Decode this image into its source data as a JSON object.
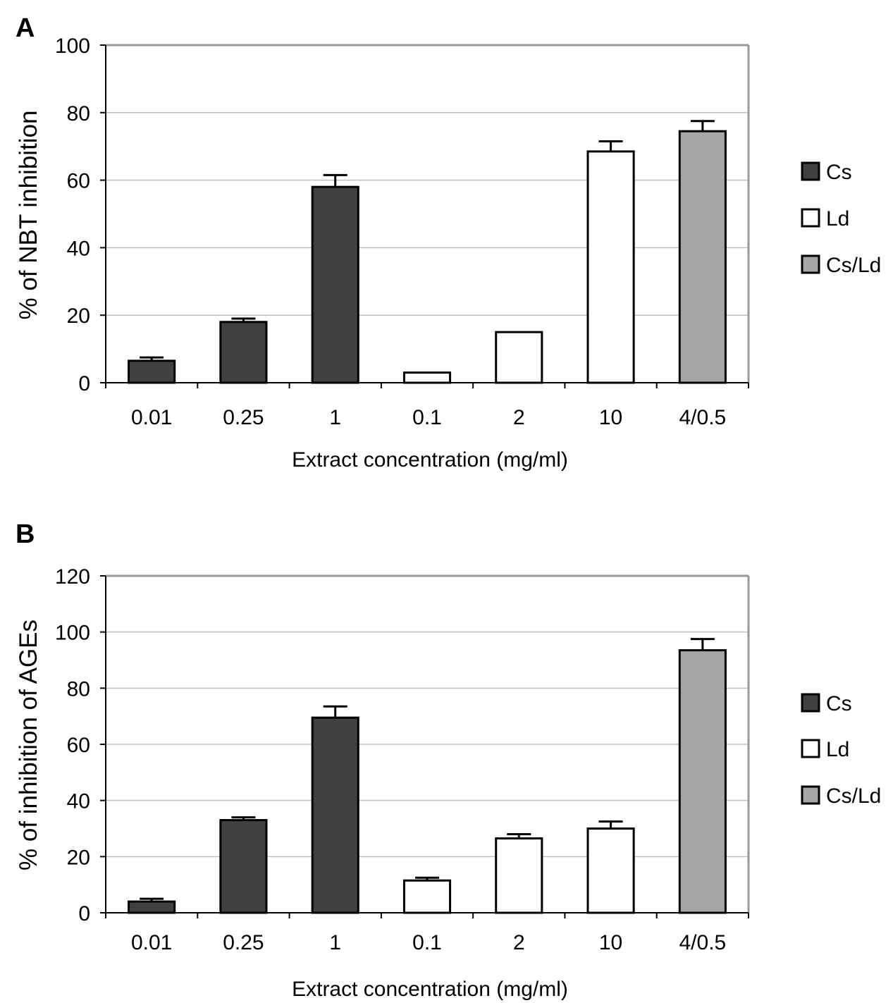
{
  "colors": {
    "cs": "#404040",
    "ld": "#ffffff",
    "cs_ld": "#a6a6a6",
    "outline": "#000000",
    "frame": "#999999",
    "grid": "#c0c0c0"
  },
  "chart_data": [
    {
      "panel_label": "A",
      "type": "bar",
      "title": "",
      "xlabel": "Extract concentration (mg/ml)",
      "ylabel": "% of NBT inhibition",
      "ylim": [
        0,
        100
      ],
      "yticks": [
        0,
        20,
        40,
        60,
        80,
        100
      ],
      "grid": true,
      "legend_position": "right",
      "categories": [
        "0.01",
        "0.25",
        "1",
        "0.1",
        "2",
        "10",
        "4/0.5"
      ],
      "series": [
        {
          "name": "Cs",
          "color_key": "cs",
          "values": [
            6.5,
            18,
            58,
            null,
            null,
            null,
            null
          ],
          "errors": [
            1,
            1,
            3.5,
            null,
            null,
            null,
            null
          ]
        },
        {
          "name": "Ld",
          "color_key": "ld",
          "values": [
            null,
            null,
            null,
            3,
            15,
            68.5,
            null
          ],
          "errors": [
            null,
            null,
            null,
            0,
            0,
            3,
            null
          ]
        },
        {
          "name": "Cs/Ld",
          "color_key": "cs_ld",
          "values": [
            null,
            null,
            null,
            null,
            null,
            null,
            74.5
          ],
          "errors": [
            null,
            null,
            null,
            null,
            null,
            null,
            3
          ]
        }
      ]
    },
    {
      "panel_label": "B",
      "type": "bar",
      "title": "",
      "xlabel": "Extract concentration (mg/ml)",
      "ylabel": "% of inhibition of AGEs",
      "ylim": [
        0,
        120
      ],
      "yticks": [
        0,
        20,
        40,
        60,
        80,
        100,
        120
      ],
      "grid": true,
      "legend_position": "right",
      "categories": [
        "0.01",
        "0.25",
        "1",
        "0.1",
        "2",
        "10",
        "4/0.5"
      ],
      "series": [
        {
          "name": "Cs",
          "color_key": "cs",
          "values": [
            4,
            33,
            69.5,
            null,
            null,
            null,
            null
          ],
          "errors": [
            1,
            1,
            4,
            null,
            null,
            null,
            null
          ]
        },
        {
          "name": "Ld",
          "color_key": "ld",
          "values": [
            null,
            null,
            null,
            11.5,
            26.5,
            30,
            null
          ],
          "errors": [
            null,
            null,
            null,
            1,
            1.5,
            2.5,
            null
          ]
        },
        {
          "name": "Cs/Ld",
          "color_key": "cs_ld",
          "values": [
            null,
            null,
            null,
            null,
            null,
            null,
            93.5
          ],
          "errors": [
            null,
            null,
            null,
            null,
            null,
            null,
            4
          ]
        }
      ]
    }
  ]
}
